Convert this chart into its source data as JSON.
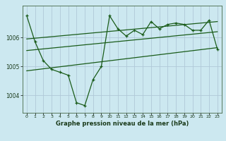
{
  "title": "Graphe pression niveau de la mer (hPa)",
  "background_color": "#cce8f0",
  "grid_color": "#b0c8d8",
  "line_color": "#1a5c1a",
  "x_ticks": [
    0,
    1,
    2,
    3,
    4,
    5,
    6,
    7,
    8,
    9,
    10,
    11,
    12,
    13,
    14,
    15,
    16,
    17,
    18,
    19,
    20,
    21,
    22,
    23
  ],
  "y_ticks": [
    1004,
    1005,
    1006
  ],
  "ylim": [
    1003.4,
    1007.1
  ],
  "xlim": [
    -0.5,
    23.5
  ],
  "series_main_x": [
    0,
    1,
    2,
    3,
    4,
    5,
    6,
    7,
    8,
    9,
    10,
    11,
    12,
    13,
    14,
    15,
    16,
    17,
    18,
    19,
    20,
    21,
    22,
    23
  ],
  "series_main_y": [
    1006.75,
    1005.85,
    1005.2,
    1004.9,
    1004.8,
    1004.7,
    1003.75,
    1003.65,
    1004.55,
    1005.0,
    1006.75,
    1006.3,
    1006.05,
    1006.25,
    1006.1,
    1006.55,
    1006.3,
    1006.45,
    1006.5,
    1006.45,
    1006.25,
    1006.25,
    1006.6,
    1005.6
  ],
  "line1_x": [
    0,
    23
  ],
  "line1_y": [
    1005.95,
    1006.55
  ],
  "line2_x": [
    0,
    23
  ],
  "line2_y": [
    1005.55,
    1006.2
  ],
  "line3_x": [
    0,
    23
  ],
  "line3_y": [
    1004.85,
    1005.65
  ]
}
